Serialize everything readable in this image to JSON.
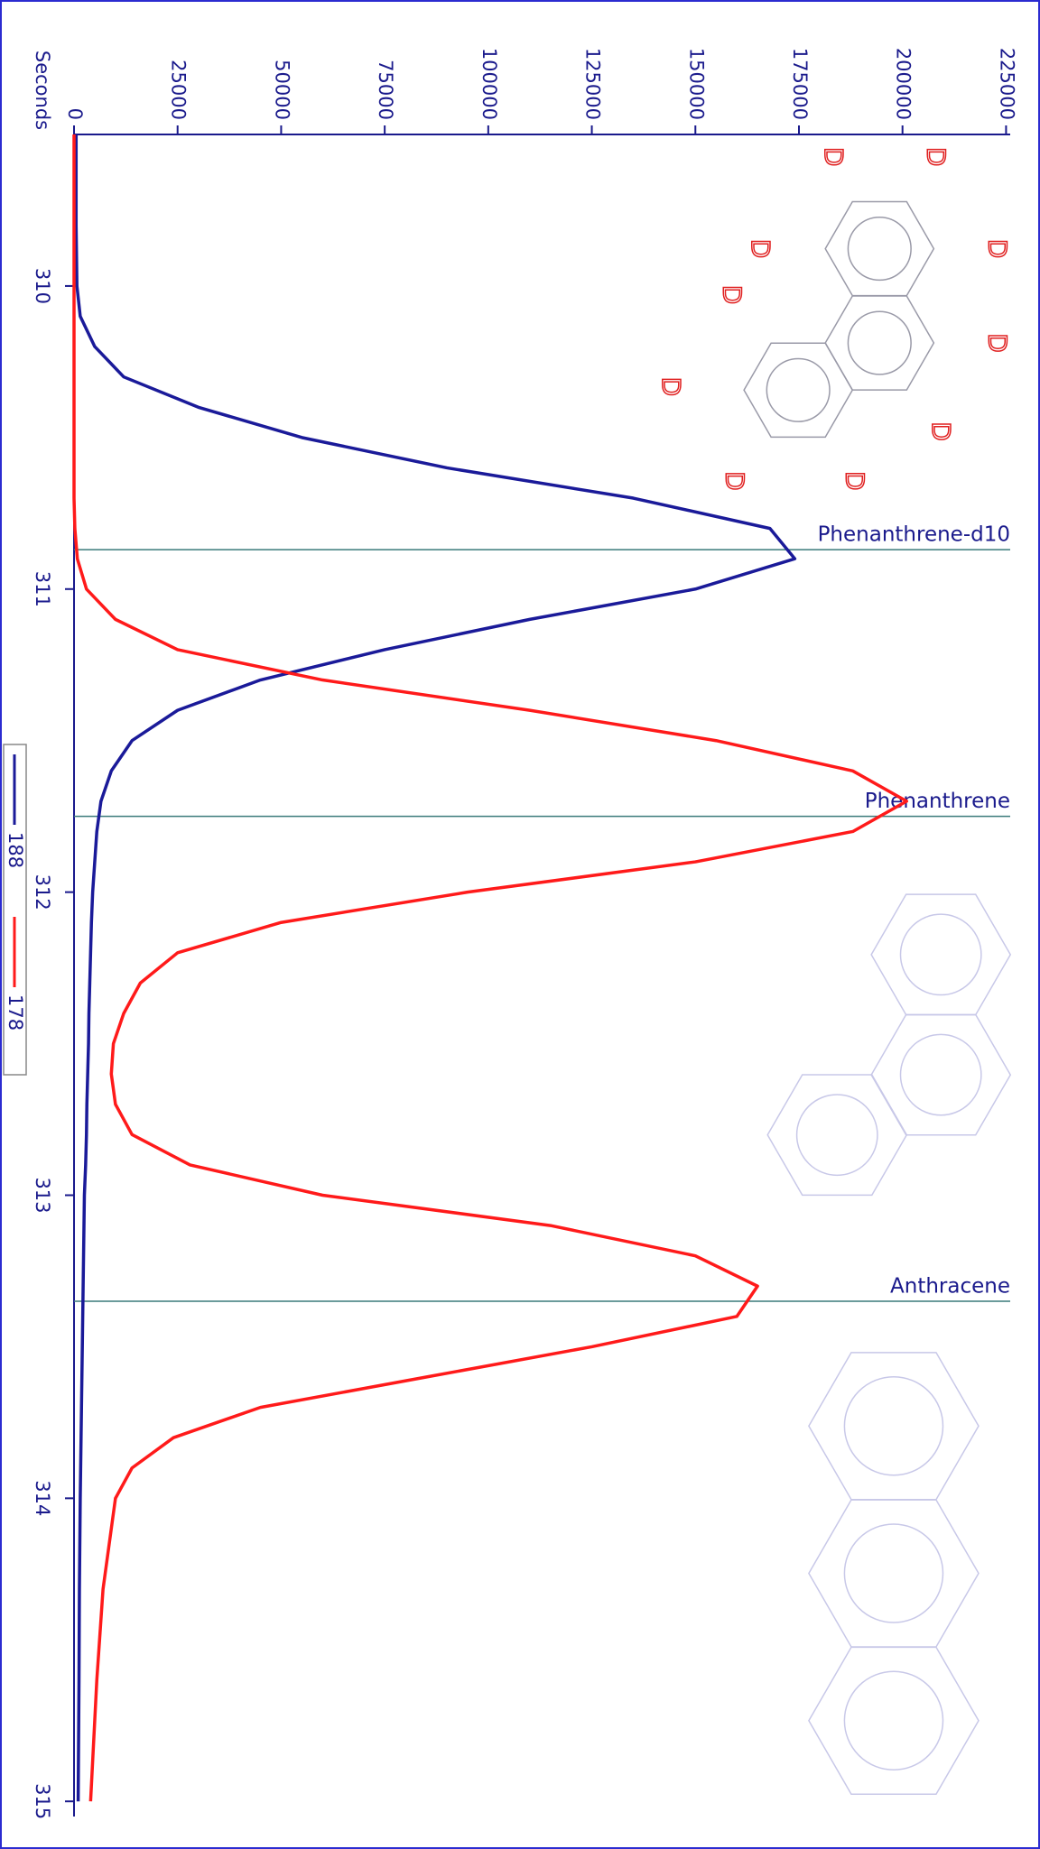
{
  "chart_data": {
    "type": "line",
    "x_label": "Seconds",
    "x": [
      309.5,
      309.8,
      310.0,
      310.1,
      310.2,
      310.3,
      310.4,
      310.5,
      310.6,
      310.7,
      310.8,
      310.9,
      311.0,
      311.1,
      311.2,
      311.3,
      311.4,
      311.5,
      311.6,
      311.7,
      311.8,
      311.9,
      312.0,
      312.1,
      312.2,
      312.3,
      312.4,
      312.5,
      312.6,
      312.7,
      312.8,
      312.9,
      313.0,
      313.1,
      313.2,
      313.3,
      313.4,
      313.5,
      313.6,
      313.7,
      313.8,
      313.9,
      314.0,
      314.3,
      314.6,
      315.0
    ],
    "series": [
      {
        "name": "188",
        "color": "#1a1a99",
        "values": [
          500,
          500,
          700,
          1500,
          5000,
          12000,
          30000,
          55000,
          90000,
          135000,
          168000,
          174000,
          150000,
          110000,
          75000,
          45000,
          25000,
          14000,
          9000,
          6500,
          5500,
          5000,
          4500,
          4200,
          4000,
          3800,
          3600,
          3500,
          3300,
          3100,
          3000,
          2800,
          2500,
          2400,
          2300,
          2200,
          2100,
          2000,
          1900,
          1800,
          1700,
          1600,
          1500,
          1300,
          1200,
          1000
        ]
      },
      {
        "name": "178",
        "color": "#ff1a1a",
        "values": [
          0,
          0,
          0,
          0,
          0,
          0,
          0,
          0,
          0,
          0,
          200,
          800,
          3000,
          10000,
          25000,
          60000,
          110000,
          155000,
          188000,
          201000,
          188000,
          150000,
          95000,
          50000,
          25000,
          16000,
          12000,
          9500,
          9000,
          10000,
          14000,
          28000,
          60000,
          115000,
          150000,
          165000,
          160000,
          125000,
          85000,
          45000,
          24000,
          14000,
          10000,
          7000,
          5500,
          4000
        ]
      }
    ],
    "xlim": [
      309.5,
      315.05
    ],
    "xticks": [
      310,
      311,
      312,
      313,
      314,
      315
    ],
    "ylim": [
      0,
      226000
    ],
    "yticks": [
      0,
      25000,
      50000,
      75000,
      100000,
      125000,
      150000,
      175000,
      200000,
      225000
    ],
    "annotations": [
      {
        "x": 310.87,
        "label": "Phenanthrene-d10"
      },
      {
        "x": 311.75,
        "label": "Phenanthrene"
      },
      {
        "x": 313.35,
        "label": "Anthracene"
      }
    ],
    "structure_atom_label": "D"
  }
}
